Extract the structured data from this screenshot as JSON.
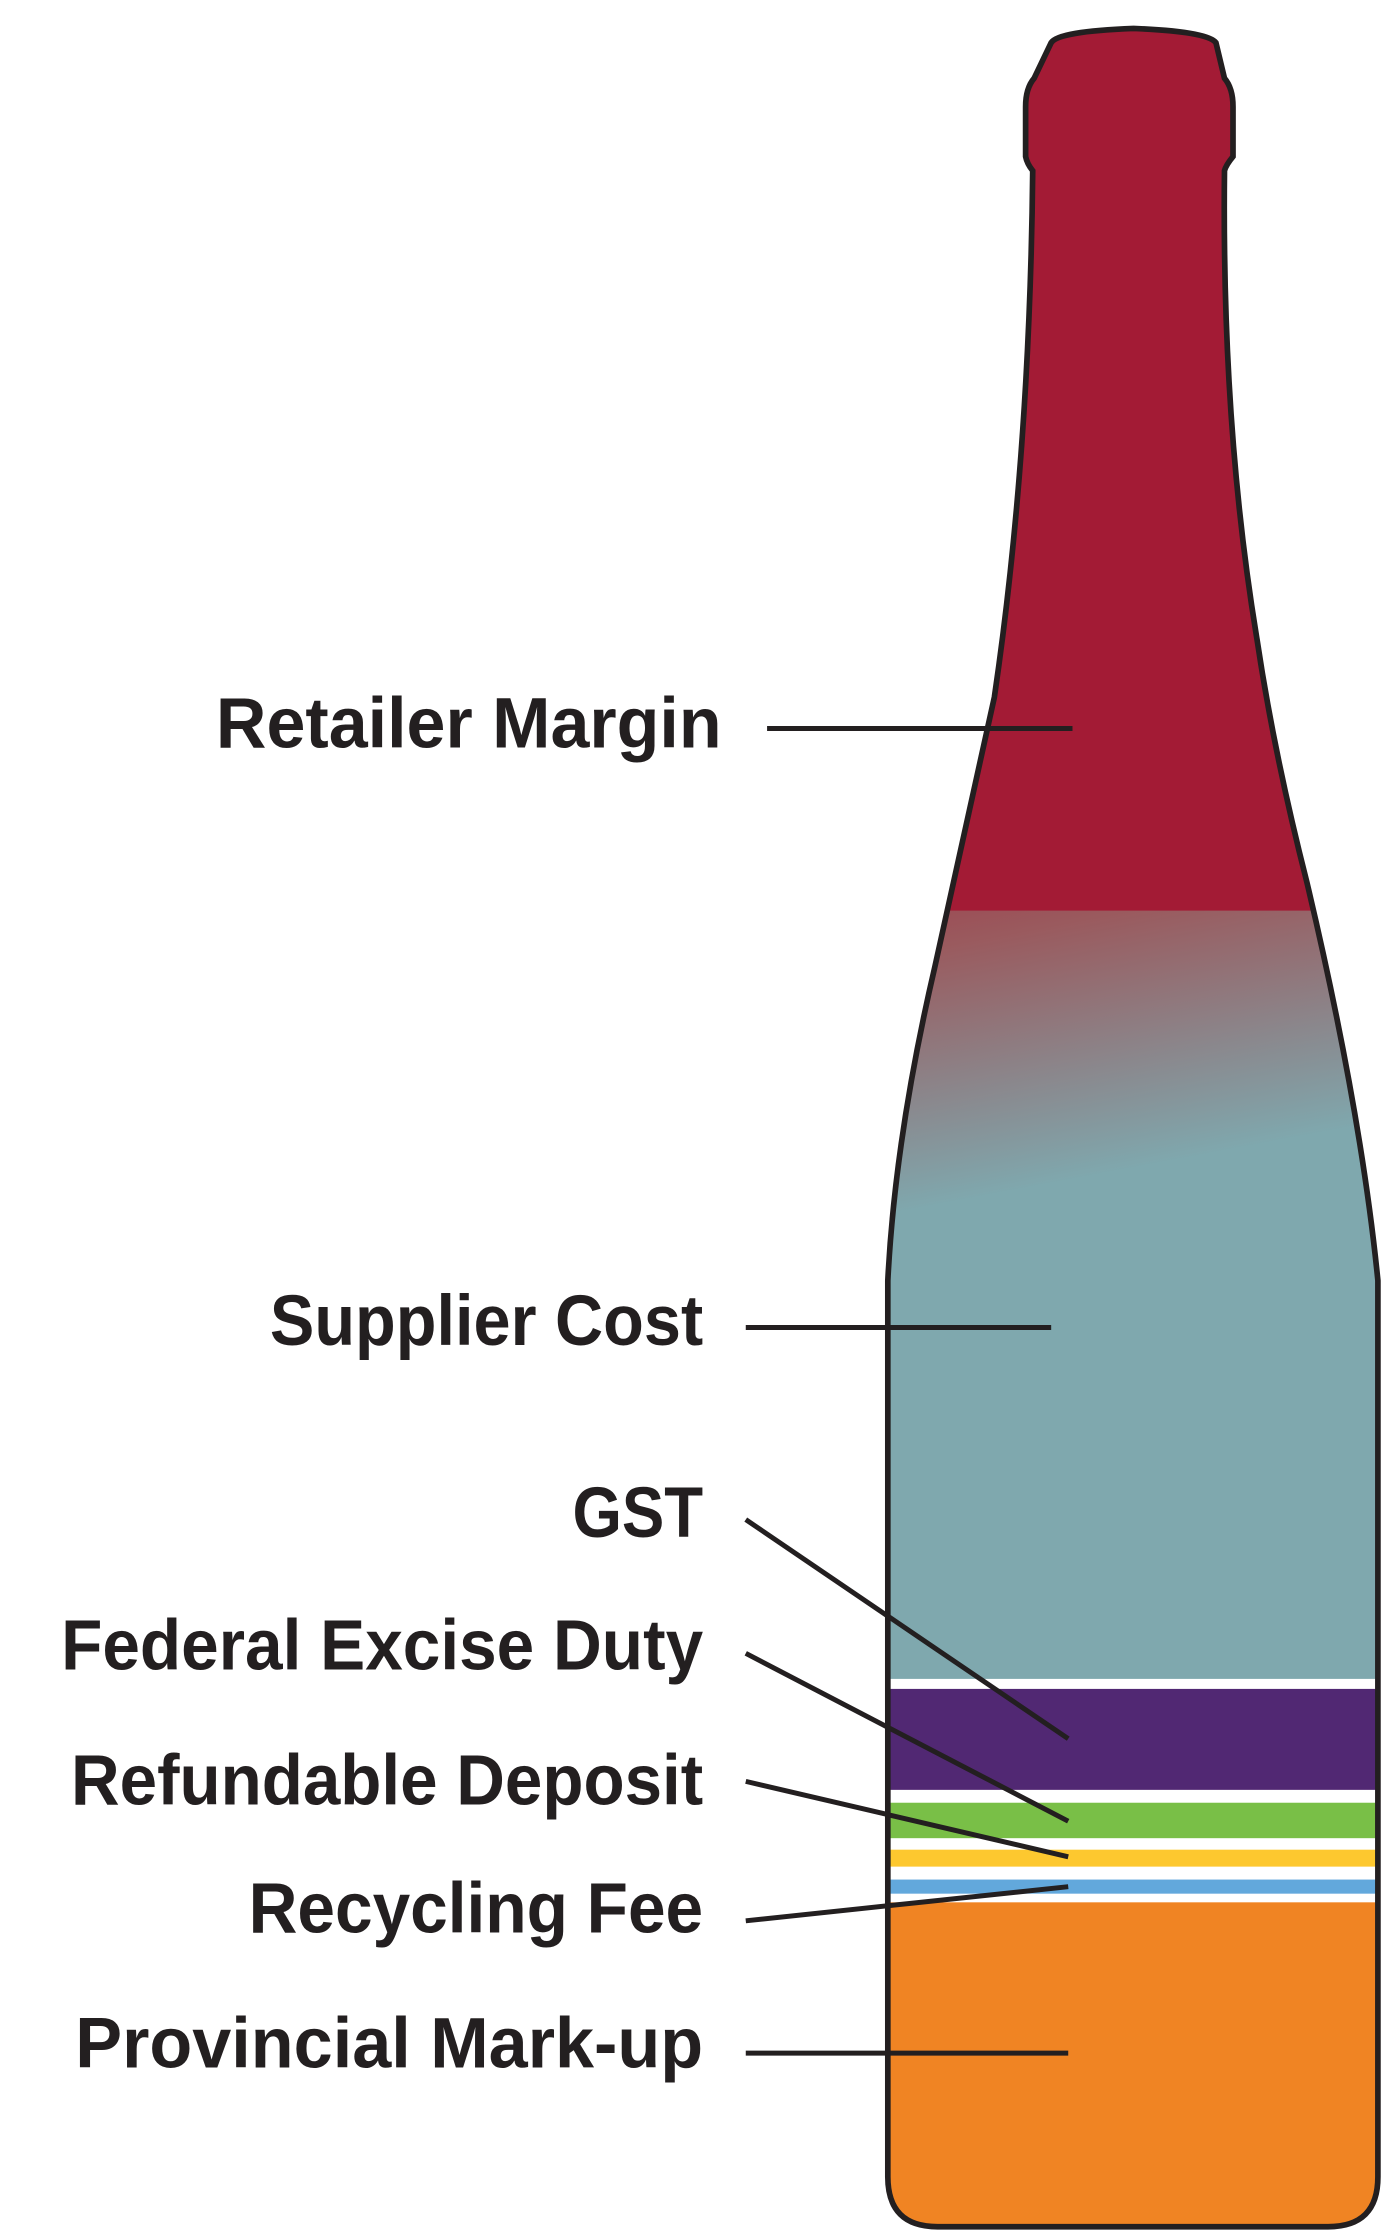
{
  "labels": [
    "Retailer Margin",
    "Supplier Cost",
    "GST",
    "Federal Excise Duty",
    "Refundable Deposit",
    "Recycling Fee",
    "Provincial Mark-up"
  ]
}
